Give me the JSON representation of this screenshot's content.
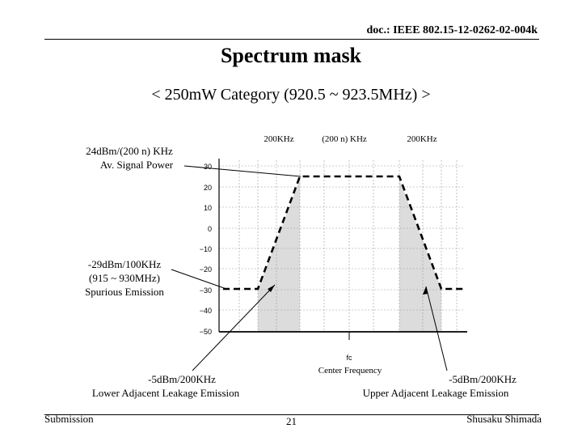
{
  "header": {
    "doc_id": "doc.: IEEE 802.15-12-0262-02-004k"
  },
  "title": "Spectrum mask",
  "subtitle": "< 250mW Category (920.5 ~ 923.5MHz) >",
  "chart": {
    "y_ticks": [
      "30",
      "20",
      "10",
      "0",
      "−10",
      "−20",
      "−30",
      "−40",
      "−50"
    ],
    "top_labels": {
      "left": "200KHz",
      "center": "(200 n) KHz",
      "right": "200KHz"
    },
    "fc_label": "fc",
    "center_frequency": "Center Frequency"
  },
  "annotations": {
    "signal_power": {
      "line1": "24dBm/(200 n) KHz",
      "line2": "Av. Signal Power"
    },
    "spurious": {
      "line1": "-29dBm/100KHz",
      "line2": "(915 ~ 930MHz)",
      "line3": "Spurious Emission"
    },
    "lower_adjacent": {
      "line1": "-5dBm/200KHz",
      "line2": "Lower Adjacent Leakage Emission"
    },
    "upper_adjacent": {
      "line1": "-5dBm/200KHz",
      "line2": "Upper Adjacent Leakage Emission"
    }
  },
  "footer": {
    "left": "Submission",
    "page": "21",
    "right": "Shusaku Shimada"
  }
}
